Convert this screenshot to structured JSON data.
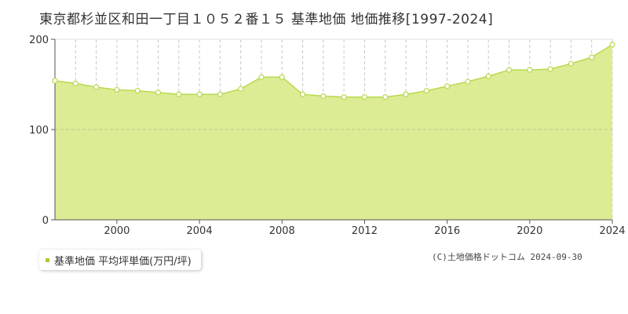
{
  "title": "東京都杉並区和田一丁目１０５２番１５ 基準地価 地価推移[1997-2024]",
  "legend_label": "基準地価 平均坪単価(万円/坪)",
  "copyright": "(C)土地価格ドットコム 2024-09-30",
  "colors": {
    "area_fill": "#dcec94",
    "line": "#b8d94d",
    "marker_fill": "#ffffff",
    "grid": "#c8c8c8",
    "axis": "#555555",
    "legend_marker": "#a8cc38"
  },
  "chart_data": {
    "type": "area",
    "title": "東京都杉並区和田一丁目１０５２番１５ 基準地価 地価推移[1997-2024]",
    "xlabel": "",
    "ylabel": "",
    "xlim": [
      1997,
      2024
    ],
    "ylim": [
      0,
      200
    ],
    "yticks": [
      0,
      100,
      200
    ],
    "xticks": [
      2000,
      2004,
      2008,
      2012,
      2016,
      2020,
      2024
    ],
    "grid": true,
    "legend_position": "bottom-left",
    "series": [
      {
        "name": "基準地価 平均坪単価(万円/坪)",
        "x": [
          1997,
          1998,
          1999,
          2000,
          2001,
          2002,
          2003,
          2004,
          2005,
          2006,
          2007,
          2008,
          2009,
          2010,
          2011,
          2012,
          2013,
          2014,
          2015,
          2016,
          2017,
          2018,
          2019,
          2020,
          2021,
          2022,
          2023,
          2024
        ],
        "values": [
          154,
          151,
          147,
          144,
          143,
          141,
          139,
          139,
          139,
          145,
          158,
          158,
          139,
          137,
          136,
          136,
          136,
          139,
          143,
          148,
          153,
          159,
          166,
          166,
          167,
          173,
          180,
          194
        ]
      }
    ]
  }
}
